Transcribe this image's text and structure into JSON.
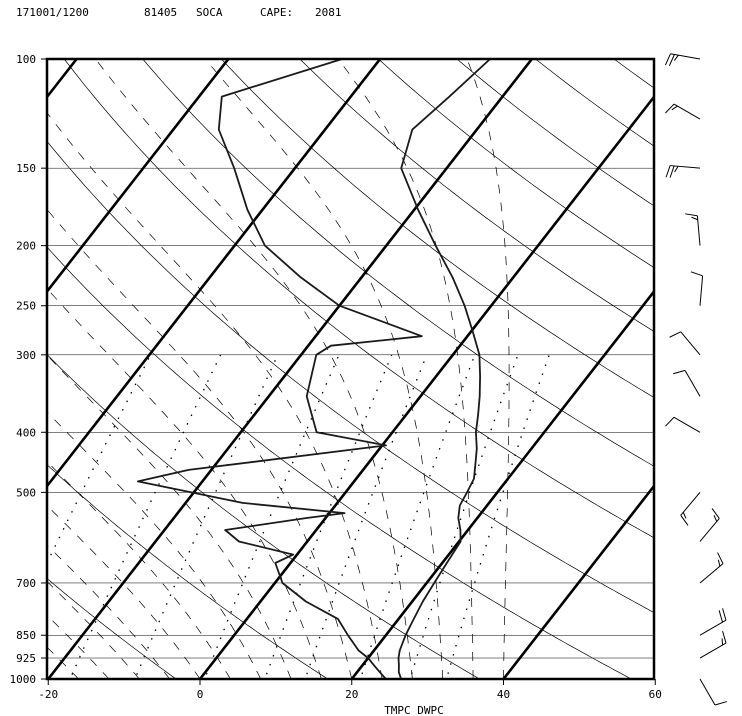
{
  "header": {
    "datetime": "171001/1200",
    "station_id": "81405",
    "station_name": "SOCA",
    "cape_label": "CAPE:",
    "cape_value": "2081"
  },
  "chart_data": {
    "type": "skew-t",
    "xlabel": "TMPC DWPC",
    "xlim": [
      -20,
      60
    ],
    "x_ticks": [
      -20,
      0,
      20,
      40,
      60
    ],
    "pressure_levels": [
      100,
      150,
      200,
      250,
      300,
      400,
      500,
      700,
      850,
      925,
      1000
    ],
    "pressure_range": [
      1000,
      100
    ],
    "temperature_profile": [
      [
        1000,
        26.5
      ],
      [
        975,
        25.5
      ],
      [
        950,
        24.8
      ],
      [
        925,
        24.0
      ],
      [
        900,
        23.4
      ],
      [
        850,
        22.6
      ],
      [
        800,
        22.0
      ],
      [
        750,
        21.4
      ],
      [
        700,
        21.0
      ],
      [
        650,
        20.6
      ],
      [
        600,
        20.2
      ],
      [
        575,
        19.0
      ],
      [
        550,
        17.5
      ],
      [
        525,
        16.4
      ],
      [
        500,
        16.0
      ],
      [
        475,
        15.5
      ],
      [
        450,
        14.2
      ],
      [
        425,
        12.8
      ],
      [
        400,
        11.0
      ],
      [
        375,
        9.5
      ],
      [
        350,
        7.8
      ],
      [
        325,
        5.8
      ],
      [
        300,
        3.5
      ],
      [
        275,
        0.2
      ],
      [
        250,
        -3.5
      ],
      [
        225,
        -8.0
      ],
      [
        200,
        -13.5
      ],
      [
        175,
        -19.5
      ],
      [
        150,
        -26.0
      ],
      [
        130,
        -28.5
      ],
      [
        115,
        -27.0
      ],
      [
        100,
        -25.5
      ]
    ],
    "dewpoint_profile": [
      [
        1000,
        24.5
      ],
      [
        975,
        23.0
      ],
      [
        950,
        21.5
      ],
      [
        925,
        20.0
      ],
      [
        900,
        18.0
      ],
      [
        850,
        15.0
      ],
      [
        800,
        12.0
      ],
      [
        750,
        6.0
      ],
      [
        700,
        1.0
      ],
      [
        650,
        -2.0
      ],
      [
        630,
        -0.5
      ],
      [
        600,
        -9.0
      ],
      [
        575,
        -12.0
      ],
      [
        550,
        -2.5
      ],
      [
        540,
        2.0
      ],
      [
        520,
        -12.5
      ],
      [
        480,
        -28.5
      ],
      [
        460,
        -23.0
      ],
      [
        420,
        0.5
      ],
      [
        400,
        -10.0
      ],
      [
        350,
        -15.0
      ],
      [
        300,
        -18.0
      ],
      [
        290,
        -17.0
      ],
      [
        280,
        -6.0
      ],
      [
        250,
        -20.0
      ],
      [
        225,
        -28.0
      ],
      [
        200,
        -36.0
      ],
      [
        175,
        -42.0
      ],
      [
        150,
        -48.0
      ],
      [
        130,
        -54.0
      ],
      [
        115,
        -57.0
      ],
      [
        100,
        -45.0
      ]
    ],
    "wind_barbs": [
      {
        "pressure": 100,
        "knots": 25,
        "direction_deg": 280
      },
      {
        "pressure": 125,
        "knots": 15,
        "direction_deg": 300
      },
      {
        "pressure": 150,
        "knots": 25,
        "direction_deg": 275
      },
      {
        "pressure": 200,
        "knots": 15,
        "direction_deg": 355
      },
      {
        "pressure": 250,
        "knots": 10,
        "direction_deg": 5
      },
      {
        "pressure": 300,
        "knots": 10,
        "direction_deg": 320
      },
      {
        "pressure": 350,
        "knots": 10,
        "direction_deg": 330
      },
      {
        "pressure": 400,
        "knots": 10,
        "direction_deg": 300
      },
      {
        "pressure": 500,
        "knots": 15,
        "direction_deg": 220
      },
      {
        "pressure": 600,
        "knots": 15,
        "direction_deg": 40
      },
      {
        "pressure": 700,
        "knots": 15,
        "direction_deg": 50
      },
      {
        "pressure": 850,
        "knots": 20,
        "direction_deg": 60
      },
      {
        "pressure": 925,
        "knots": 15,
        "direction_deg": 60
      },
      {
        "pressure": 1000,
        "knots": 10,
        "direction_deg": 150
      }
    ]
  }
}
